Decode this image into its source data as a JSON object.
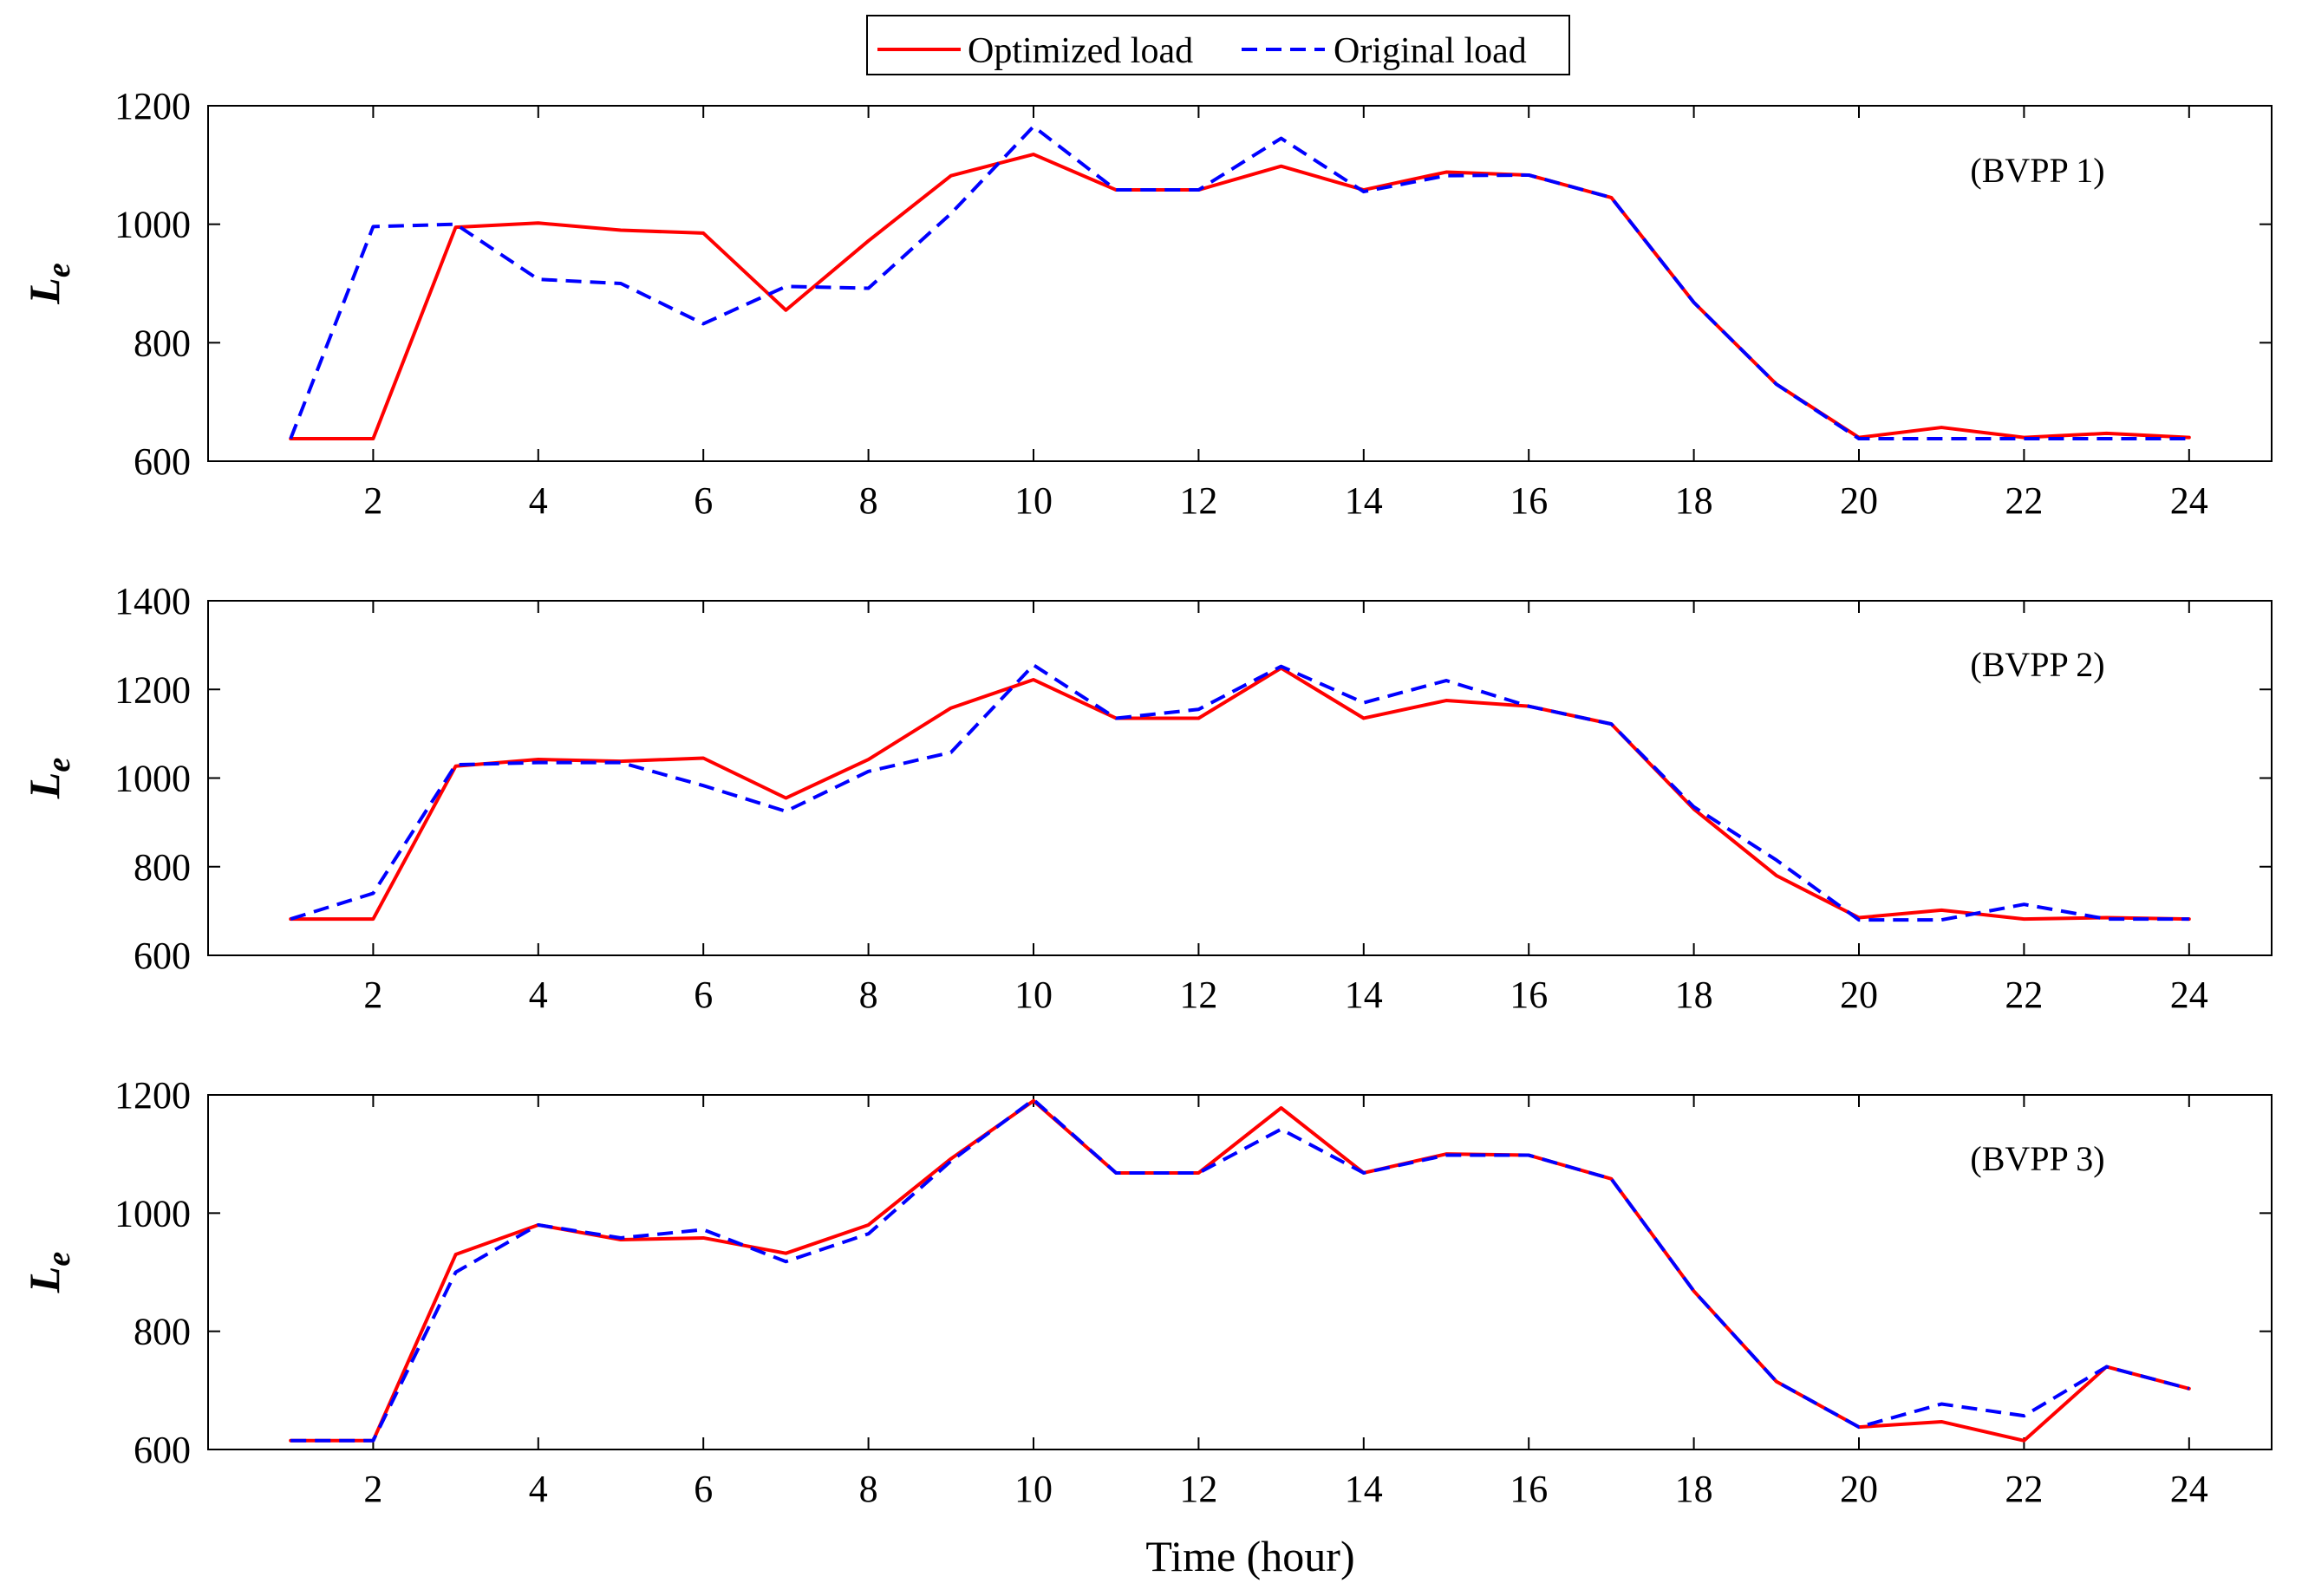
{
  "chart_data": {
    "type": "line",
    "xlabel": "Time (hour)",
    "legend": {
      "position": "top-center",
      "entries": [
        {
          "name": "Optimized load",
          "color": "#ff0000",
          "style": "solid"
        },
        {
          "name": "Original load",
          "color": "#0000ff",
          "style": "dashed"
        }
      ]
    },
    "x": [
      1,
      2,
      3,
      4,
      5,
      6,
      7,
      8,
      9,
      10,
      11,
      12,
      13,
      14,
      15,
      16,
      17,
      18,
      19,
      20,
      21,
      22,
      23,
      24
    ],
    "xlim": [
      0,
      25
    ],
    "xticks": [
      2,
      4,
      6,
      8,
      10,
      12,
      14,
      16,
      18,
      20,
      22,
      24
    ],
    "xtick_labels": [
      "2",
      "4",
      "6",
      "8",
      "10",
      "12",
      "14",
      "16",
      "18",
      "20",
      "22",
      "24"
    ],
    "panels": [
      {
        "label": "(BVPP 1)",
        "ylabel_main": "L",
        "ylabel_sub": "e",
        "ylim": [
          600,
          1200
        ],
        "yticks": [
          600,
          800,
          1000,
          1200
        ],
        "ytick_labels": [
          "600",
          "800",
          "1000",
          "1200"
        ],
        "series": [
          {
            "name": "Optimized load",
            "color": "#ff0000",
            "style": "solid",
            "values": [
              638,
              638,
              995,
              1002,
              990,
              985,
              855,
              972,
              1082,
              1118,
              1058,
              1058,
              1098,
              1058,
              1088,
              1083,
              1045,
              868,
              730,
              640,
              657,
              640,
              647,
              640
            ]
          },
          {
            "name": "Original load",
            "color": "#0000ff",
            "style": "dashed",
            "values": [
              638,
              996,
              1000,
              907,
              900,
              832,
              895,
              892,
              1018,
              1165,
              1058,
              1058,
              1145,
              1055,
              1082,
              1083,
              1045,
              868,
              730,
              638,
              638,
              638,
              638,
              638
            ]
          }
        ]
      },
      {
        "label": "(BVPP 2)",
        "ylabel_main": "L",
        "ylabel_sub": "e",
        "ylim": [
          600,
          1400
        ],
        "yticks": [
          600,
          800,
          1000,
          1200,
          1400
        ],
        "ytick_labels": [
          "600",
          "800",
          "1000",
          "1200",
          "1400"
        ],
        "series": [
          {
            "name": "Optimized load",
            "color": "#ff0000",
            "style": "solid",
            "values": [
              682,
              682,
              1027,
              1042,
              1038,
              1045,
              955,
              1042,
              1158,
              1222,
              1135,
              1135,
              1248,
              1135,
              1175,
              1162,
              1122,
              930,
              780,
              685,
              702,
              682,
              685,
              682
            ]
          },
          {
            "name": "Original load",
            "color": "#0000ff",
            "style": "dashed",
            "values": [
              682,
              740,
              1030,
              1035,
              1035,
              983,
              925,
              1015,
              1058,
              1255,
              1135,
              1155,
              1252,
              1170,
              1220,
              1162,
              1122,
              935,
              815,
              680,
              680,
              715,
              682,
              682
            ]
          }
        ]
      },
      {
        "label": "(BVPP 3)",
        "ylabel_main": "L",
        "ylabel_sub": "e",
        "ylim": [
          600,
          1200
        ],
        "yticks": [
          600,
          800,
          1000,
          1200
        ],
        "ytick_labels": [
          "600",
          "800",
          "1000",
          "1200"
        ],
        "series": [
          {
            "name": "Optimized load",
            "color": "#ff0000",
            "style": "solid",
            "values": [
              615,
              615,
              930,
              980,
              955,
              958,
              932,
              980,
              1092,
              1190,
              1068,
              1068,
              1178,
              1068,
              1100,
              1098,
              1058,
              868,
              715,
              638,
              647,
              615,
              740,
              703
            ]
          },
          {
            "name": "Original load",
            "color": "#0000ff",
            "style": "dashed",
            "values": [
              615,
              615,
              900,
              980,
              958,
              972,
              918,
              965,
              1088,
              1192,
              1068,
              1068,
              1142,
              1068,
              1098,
              1098,
              1058,
              868,
              715,
              638,
              677,
              657,
              740,
              703
            ]
          }
        ]
      }
    ]
  }
}
